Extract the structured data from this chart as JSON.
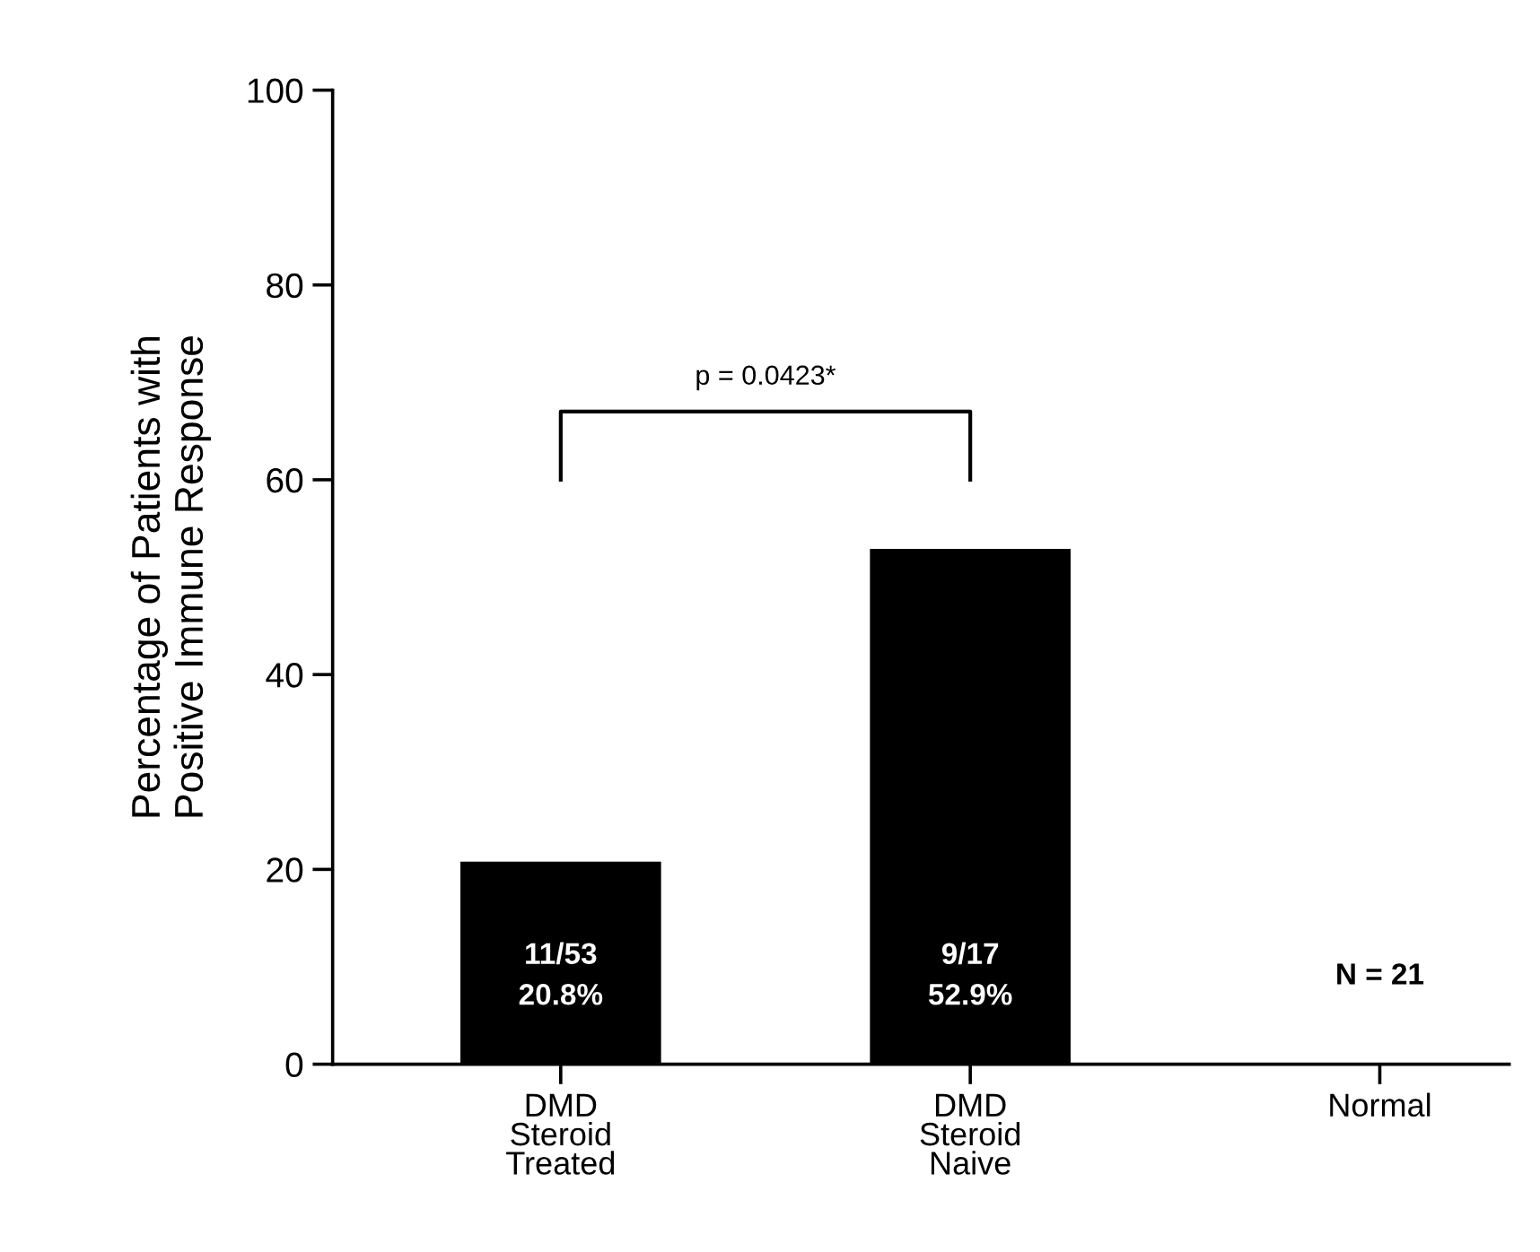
{
  "chart_data": {
    "type": "bar",
    "ylabel": "Percentage of Patients with\nPositive Immune Response",
    "categories": [
      "DMD\nSteroid\nTreated",
      "DMD\nSteroid\nNaive",
      "Normal"
    ],
    "values": [
      20.8,
      52.9,
      0
    ],
    "value_labels": [
      "11/53\n20.8%",
      "9/17\n52.9%",
      null
    ],
    "color": "#000000",
    "ylim": [
      0,
      100
    ],
    "yticks": [
      0,
      20,
      40,
      60,
      80,
      100
    ],
    "annotations": [
      "p = 0.0423*",
      "N = 21"
    ],
    "grid": false,
    "legend": false
  }
}
